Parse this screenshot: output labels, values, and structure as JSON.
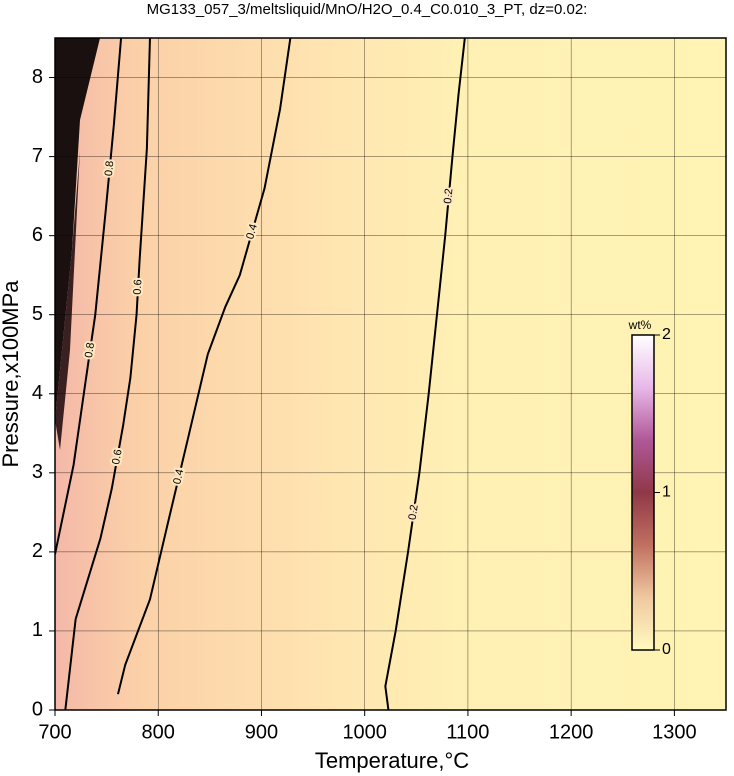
{
  "chart_data": {
    "type": "contour",
    "title": "MG133_057_3/meltsliquid/MnO/H2O_0.4_C0.010_3_PT, dz=0.02:",
    "xlabel": "Temperature,°C",
    "ylabel": "Pressure,x100MPa",
    "xlim": [
      700,
      1350
    ],
    "ylim": [
      0,
      8.5
    ],
    "xticks": [
      700,
      800,
      900,
      1000,
      1100,
      1200,
      1300
    ],
    "yticks": [
      0,
      1,
      2,
      3,
      4,
      5,
      6,
      7,
      8
    ],
    "grid": true,
    "contours": [
      {
        "level": 0.2,
        "x": [
          1023,
          1020,
          1030,
          1042,
          1053,
          1062,
          1070,
          1078,
          1085,
          1091,
          1097
        ],
        "y": [
          0,
          0.3,
          1,
          2,
          3,
          4,
          5,
          6,
          7,
          7.8,
          8.5
        ]
      },
      {
        "level": 0.4,
        "x": [
          761,
          768,
          792,
          810,
          830,
          848,
          865,
          879,
          903,
          918,
          928
        ],
        "y": [
          0.2,
          0.57,
          1.4,
          2.4,
          3.5,
          4.5,
          5.1,
          5.5,
          6.6,
          7.6,
          8.5
        ]
      },
      {
        "level": 0.6,
        "x": [
          710,
          720,
          744,
          755,
          766,
          773,
          779,
          782,
          789,
          792
        ],
        "y": [
          0,
          1.15,
          2.17,
          2.8,
          3.6,
          4.2,
          5,
          5.7,
          7.1,
          8.5
        ]
      },
      {
        "level": 0.8,
        "x": [
          700,
          718,
          729,
          739,
          749,
          757,
          764
        ],
        "y": [
          1.97,
          3.1,
          4.1,
          5,
          6.3,
          7.4,
          8.5
        ]
      }
    ],
    "colorbar": {
      "label": "wt%",
      "lim": [
        0,
        2
      ],
      "ticks": [
        0,
        1,
        2
      ],
      "colors": [
        "#fffbc0",
        "#f0c8a0",
        "#c07060",
        "#903848",
        "#b05898",
        "#e8b8e8",
        "#ffffff"
      ]
    }
  }
}
